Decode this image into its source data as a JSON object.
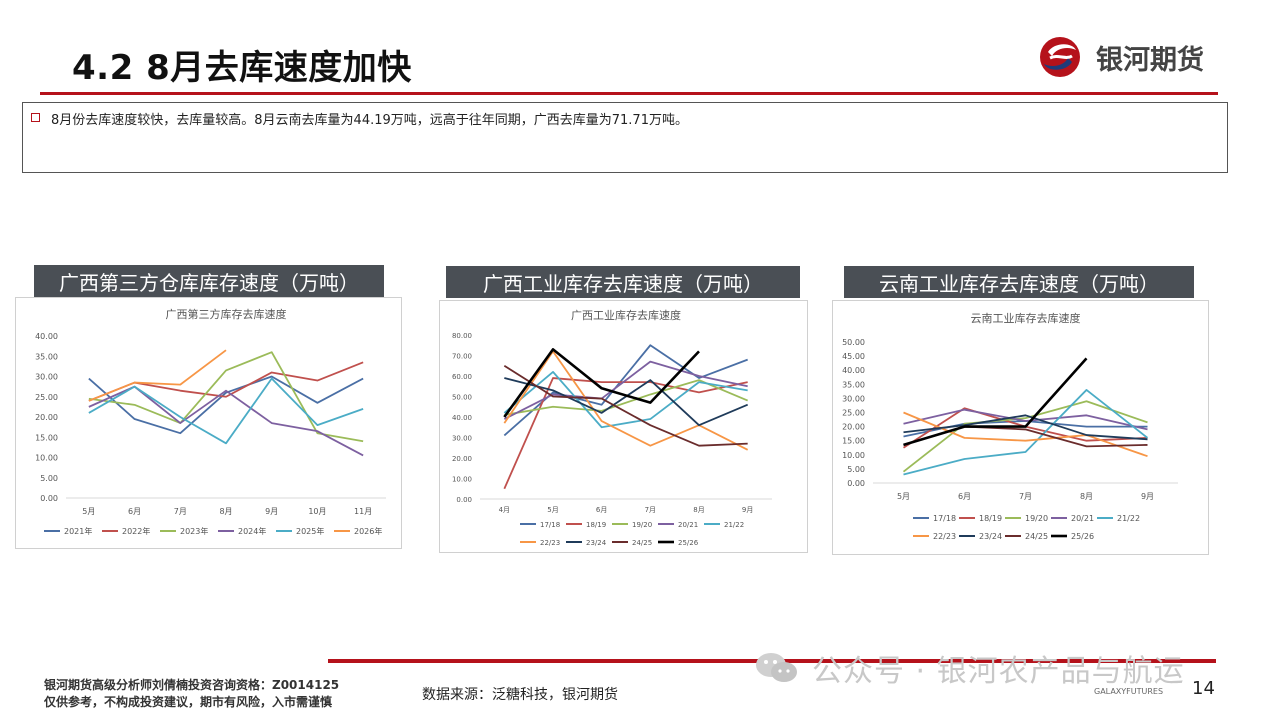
{
  "header": {
    "title": "4.2 8月去库速度加快",
    "logo_text": "银河期货"
  },
  "note": {
    "text": "8月份去库速度较快，去库量较高。8月云南去库量为44.19万吨，远高于往年同期，广西去库量为71.71万吨。"
  },
  "panels": [
    {
      "heading": "广西第三方仓库库存速度（万吨）"
    },
    {
      "heading": "广西工业库存去库速度（万吨）"
    },
    {
      "heading": "云南工业库存去库速度（万吨）"
    }
  ],
  "chart_data": [
    {
      "type": "line",
      "title": "广西第三方库存去库速度",
      "categories": [
        "5月",
        "6月",
        "7月",
        "8月",
        "9月",
        "10月",
        "11月"
      ],
      "yticks": [
        "0.00",
        "5.00",
        "10.00",
        "15.00",
        "20.00",
        "25.00",
        "30.00",
        "35.00",
        "40.00"
      ],
      "ylim": [
        0,
        40
      ],
      "legend_position": "bottom",
      "series": [
        {
          "name": "2021年",
          "color": "#4a6fa5",
          "values": [
            29.5,
            19.5,
            16,
            26,
            30,
            23.5,
            29.5
          ]
        },
        {
          "name": "2022年",
          "color": "#c0504d",
          "values": [
            24,
            28.5,
            26.5,
            25,
            31,
            29,
            33.5
          ]
        },
        {
          "name": "2023年",
          "color": "#9bbb59",
          "values": [
            24.5,
            23,
            18.5,
            31.5,
            36,
            16,
            14
          ]
        },
        {
          "name": "2024年",
          "color": "#7d60a0",
          "values": [
            22.5,
            27.5,
            18.5,
            26.5,
            18.5,
            16.5,
            10.5
          ]
        },
        {
          "name": "2025年",
          "color": "#4bacc6",
          "values": [
            21,
            27.5,
            20,
            13.5,
            29.5,
            18,
            22
          ]
        },
        {
          "name": "2026年",
          "color": "#f79646",
          "values": [
            24,
            28.5,
            28,
            36.5,
            null,
            null,
            null
          ]
        }
      ]
    },
    {
      "type": "line",
      "title": "广西工业库存去库速度",
      "categories": [
        "4月",
        "5月",
        "6月",
        "7月",
        "8月",
        "9月"
      ],
      "yticks": [
        "0.00",
        "10.00",
        "20.00",
        "30.00",
        "40.00",
        "50.00",
        "60.00",
        "70.00",
        "80.00"
      ],
      "ylim": [
        0,
        80
      ],
      "legend_position": "bottom",
      "series": [
        {
          "name": "17/18",
          "color": "#4a6fa5",
          "values": [
            31,
            52,
            46,
            75,
            59,
            68
          ]
        },
        {
          "name": "18/19",
          "color": "#c0504d",
          "values": [
            5,
            59,
            57,
            57,
            52,
            57
          ]
        },
        {
          "name": "19/20",
          "color": "#9bbb59",
          "values": [
            41,
            45,
            43,
            51,
            58,
            48
          ]
        },
        {
          "name": "20/21",
          "color": "#7d60a0",
          "values": [
            39,
            51,
            49,
            67,
            60,
            55
          ]
        },
        {
          "name": "21/22",
          "color": "#4bacc6",
          "values": [
            42,
            62,
            35,
            39,
            57,
            53
          ]
        },
        {
          "name": "22/23",
          "color": "#f79646",
          "values": [
            37,
            72,
            38,
            26,
            36,
            24
          ]
        },
        {
          "name": "23/24",
          "color": "#1f3b5a",
          "values": [
            59,
            53,
            42,
            58,
            36,
            46
          ]
        },
        {
          "name": "24/25",
          "color": "#6a2c2c",
          "values": [
            65,
            50,
            49,
            36,
            26,
            27
          ]
        },
        {
          "name": "25/26",
          "color": "#000000",
          "values": [
            40,
            73,
            54,
            47,
            72,
            null
          ]
        }
      ]
    },
    {
      "type": "line",
      "title": "云南工业库存去库速度",
      "categories": [
        "5月",
        "6月",
        "7月",
        "8月",
        "9月"
      ],
      "yticks": [
        "0.00",
        "5.00",
        "10.00",
        "15.00",
        "20.00",
        "25.00",
        "30.00",
        "35.00",
        "40.00",
        "45.00",
        "50.00"
      ],
      "ylim": [
        0,
        50
      ],
      "legend_position": "bottom",
      "series": [
        {
          "name": "17/18",
          "color": "#4a6fa5",
          "values": [
            16.5,
            21,
            22,
            20,
            20
          ]
        },
        {
          "name": "18/19",
          "color": "#c0504d",
          "values": [
            12.5,
            26.5,
            20,
            15,
            16
          ]
        },
        {
          "name": "19/20",
          "color": "#9bbb59",
          "values": [
            4,
            21,
            23,
            29,
            21.5
          ]
        },
        {
          "name": "20/21",
          "color": "#7d60a0",
          "values": [
            21,
            26,
            22,
            24,
            19
          ]
        },
        {
          "name": "21/22",
          "color": "#4bacc6",
          "values": [
            3,
            8.5,
            11,
            33,
            16
          ]
        },
        {
          "name": "22/23",
          "color": "#f79646",
          "values": [
            25,
            16,
            15,
            17,
            9.5
          ]
        },
        {
          "name": "23/24",
          "color": "#1f3b5a",
          "values": [
            18,
            20.5,
            24,
            17,
            15.5
          ]
        },
        {
          "name": "24/25",
          "color": "#6a2c2c",
          "values": [
            13.5,
            20,
            19,
            13,
            13.5
          ]
        },
        {
          "name": "25/26",
          "color": "#000000",
          "values": [
            13.5,
            20,
            20,
            44.19,
            null
          ]
        }
      ]
    }
  ],
  "footer": {
    "analyst_line": "银河期货高级分析师刘倩楠投资咨询资格：Z0014125",
    "disclaimer": "仅供参考，不构成投资建议，期市有风险，入市需谨慎",
    "source": "数据来源：泛糖科技，银河期货",
    "watermark": "公众号 · 银河农产品与航运",
    "brand_small": "GALAXYFUTURES",
    "page_number": "14"
  }
}
